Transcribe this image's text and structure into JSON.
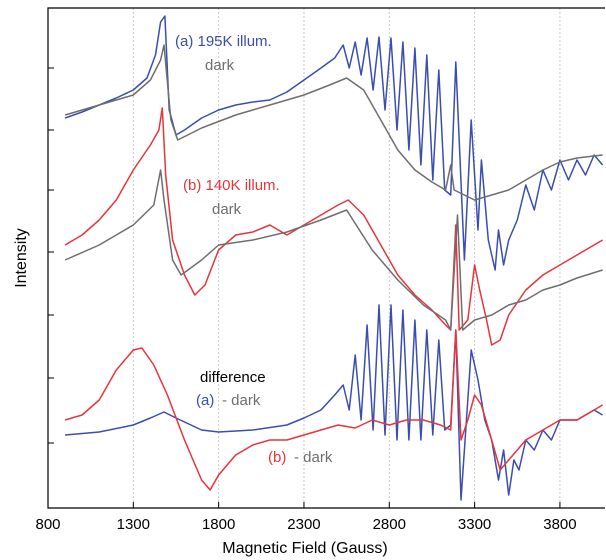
{
  "chart_data": {
    "type": "line",
    "xlabel": "Magnetic Field (Gauss)",
    "ylabel": "Intensity",
    "xlim": [
      800,
      4070
    ],
    "ylim": [
      0,
      500
    ],
    "xticks": [
      800,
      1300,
      1800,
      2300,
      2800,
      3300,
      3800
    ],
    "yticks": [
      65,
      130,
      193,
      256,
      318,
      378,
      440
    ],
    "grid": true,
    "series": [
      {
        "name": "(a) 195K illum.",
        "color": "#3a4db0",
        "x": [
          900,
          1000,
          1100,
          1200,
          1300,
          1380,
          1430,
          1460,
          1485,
          1510,
          1550,
          1600,
          1700,
          1800,
          1900,
          2000,
          2100,
          2200,
          2300,
          2400,
          2480,
          2530,
          2565,
          2600,
          2635,
          2670,
          2705,
          2740,
          2775,
          2810,
          2845,
          2880,
          2915,
          2950,
          2985,
          3020,
          3055,
          3090,
          3125,
          3160,
          3190,
          3240,
          3280,
          3320,
          3340,
          3380,
          3420,
          3440,
          3470,
          3500,
          3550,
          3600,
          3650,
          3700,
          3750,
          3800,
          3850,
          3900,
          3950,
          4000,
          4050
        ],
        "values": [
          390,
          396,
          403,
          410,
          418,
          430,
          453,
          486,
          492,
          398,
          373,
          378,
          390,
          398,
          403,
          406,
          408,
          416,
          428,
          440,
          450,
          463,
          440,
          466,
          433,
          470,
          418,
          471,
          398,
          470,
          378,
          466,
          358,
          460,
          343,
          453,
          328,
          438,
          318,
          313,
          446,
          248,
          388,
          278,
          348,
          268,
          238,
          278,
          243,
          268,
          288,
          323,
          298,
          338,
          318,
          348,
          328,
          348,
          333,
          353,
          343
        ]
      },
      {
        "name": "dark",
        "color": "#6e6e6e",
        "x": [
          900,
          1100,
          1300,
          1400,
          1460,
          1480,
          1520,
          1560,
          1700,
          1900,
          2100,
          2300,
          2450,
          2550,
          2650,
          2750,
          2850,
          2950,
          3050,
          3130,
          3160,
          3180,
          3300,
          3400,
          3500,
          3600,
          3700,
          3800,
          3900,
          4050
        ],
        "values": [
          393,
          403,
          413,
          428,
          448,
          463,
          388,
          368,
          380,
          393,
          403,
          413,
          423,
          430,
          418,
          388,
          358,
          338,
          326,
          318,
          343,
          318,
          308,
          313,
          318,
          328,
          338,
          346,
          350,
          353
        ]
      },
      {
        "name": "(b) 140K illum.",
        "color": "#e8343a",
        "x": [
          900,
          1000,
          1100,
          1200,
          1300,
          1400,
          1450,
          1470,
          1490,
          1530,
          1600,
          1660,
          1720,
          1800,
          1900,
          2000,
          2100,
          2200,
          2300,
          2400,
          2500,
          2560,
          2650,
          2750,
          2850,
          2950,
          3050,
          3130,
          3160,
          3190,
          3210,
          3260,
          3300,
          3330,
          3370,
          3400,
          3450,
          3500,
          3600,
          3700,
          3800,
          3900,
          4000,
          4050
        ],
        "values": [
          263,
          273,
          288,
          308,
          338,
          363,
          378,
          400,
          333,
          268,
          233,
          213,
          223,
          258,
          273,
          276,
          283,
          273,
          283,
          293,
          303,
          308,
          293,
          263,
          233,
          213,
          198,
          183,
          178,
          283,
          178,
          188,
          243,
          218,
          188,
          163,
          168,
          193,
          218,
          233,
          243,
          253,
          263,
          268
        ]
      },
      {
        "name": "dark",
        "color": "#6e6e6e",
        "x": [
          900,
          1100,
          1300,
          1420,
          1460,
          1480,
          1530,
          1580,
          1700,
          1800,
          2000,
          2200,
          2400,
          2550,
          2700,
          2850,
          3000,
          3130,
          3160,
          3200,
          3230,
          3300,
          3400,
          3500,
          3600,
          3700,
          3800,
          3900,
          4050
        ],
        "values": [
          248,
          263,
          283,
          303,
          338,
          308,
          248,
          233,
          248,
          263,
          268,
          276,
          288,
          298,
          258,
          228,
          203,
          188,
          178,
          293,
          178,
          188,
          193,
          203,
          208,
          218,
          223,
          230,
          238
        ]
      },
      {
        "name": "(a)",
        "color": "#3a4db0",
        "x": [
          900,
          1100,
          1300,
          1400,
          1480,
          1550,
          1700,
          1800,
          2000,
          2200,
          2300,
          2400,
          2480,
          2530,
          2565,
          2600,
          2635,
          2670,
          2705,
          2740,
          2775,
          2810,
          2845,
          2880,
          2915,
          2950,
          2985,
          3020,
          3055,
          3090,
          3125,
          3160,
          3190,
          3220,
          3280,
          3320,
          3360,
          3400,
          3440,
          3470,
          3500,
          3530,
          3560,
          3600,
          3650,
          3700,
          3750,
          3800,
          3900,
          4000,
          4050
        ],
        "values": [
          73,
          76,
          83,
          90,
          96,
          90,
          78,
          76,
          78,
          83,
          90,
          98,
          113,
          123,
          98,
          153,
          88,
          183,
          78,
          203,
          73,
          203,
          68,
          198,
          68,
          188,
          68,
          178,
          73,
          168,
          78,
          83,
          178,
          8,
          158,
          128,
          88,
          68,
          28,
          58,
          13,
          48,
          38,
          68,
          58,
          78,
          68,
          88,
          88,
          98,
          93
        ]
      },
      {
        "name": "(b)",
        "color": "#e8343a",
        "x": [
          900,
          1000,
          1100,
          1200,
          1300,
          1350,
          1420,
          1500,
          1600,
          1700,
          1750,
          1800,
          1900,
          2000,
          2100,
          2200,
          2300,
          2400,
          2500,
          2600,
          2700,
          2800,
          2900,
          3000,
          3100,
          3160,
          3190,
          3220,
          3260,
          3300,
          3340,
          3400,
          3450,
          3500,
          3550,
          3600,
          3700,
          3800,
          3900,
          4000,
          4050
        ],
        "values": [
          88,
          93,
          108,
          138,
          158,
          160,
          143,
          113,
          68,
          28,
          18,
          33,
          53,
          63,
          68,
          68,
          73,
          78,
          83,
          80,
          88,
          83,
          88,
          88,
          83,
          78,
          178,
          68,
          88,
          113,
          103,
          68,
          38,
          48,
          58,
          68,
          78,
          88,
          88,
          98,
          103
        ]
      }
    ],
    "annotations": [
      {
        "text": "difference",
        "color": "#000000"
      },
      {
        "text": "- dark",
        "color": "#6e6e6e"
      },
      {
        "text": "- dark",
        "color": "#6e6e6e"
      }
    ]
  }
}
